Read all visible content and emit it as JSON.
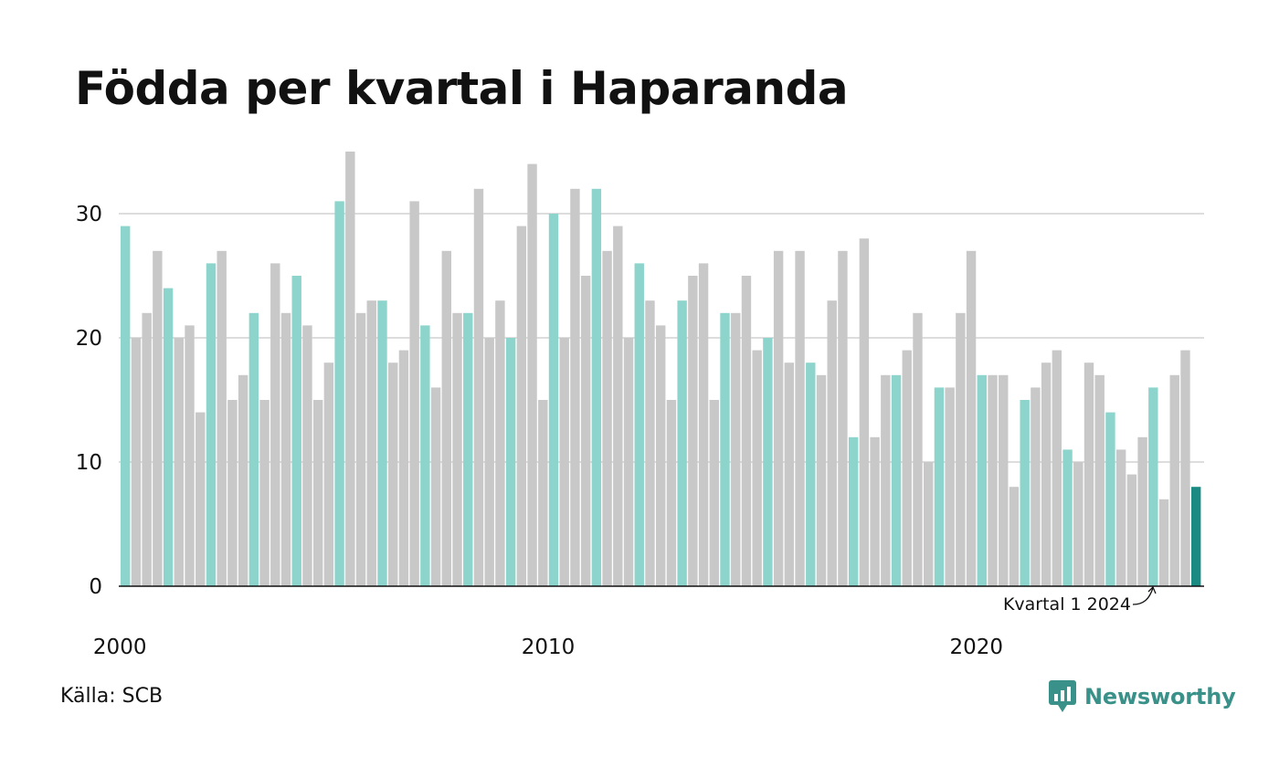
{
  "title": "Födda per kvartal i Haparanda",
  "source": "Källa: SCB",
  "brand": {
    "name": "Newsworthy",
    "icon": "newsworthy-chart-icon"
  },
  "colors": {
    "q1": "#8dd5cc",
    "other": "#c8c8c8",
    "latest": "#1a8a82",
    "grid": "#dddddd",
    "axis": "#111111"
  },
  "chart_data": {
    "type": "bar",
    "title": "Födda per kvartal i Haparanda",
    "xlabel": "",
    "ylabel": "",
    "ylim": [
      0,
      35
    ],
    "yticks": [
      0,
      10,
      20,
      30
    ],
    "xticks": [
      "2000",
      "2010",
      "2020"
    ],
    "grid": true,
    "legend": "none",
    "start_year": 2000,
    "values": [
      29,
      20,
      22,
      27,
      24,
      20,
      21,
      14,
      26,
      27,
      15,
      17,
      22,
      15,
      26,
      22,
      25,
      21,
      15,
      18,
      31,
      35,
      22,
      23,
      23,
      18,
      19,
      31,
      21,
      16,
      27,
      22,
      22,
      32,
      20,
      23,
      20,
      29,
      34,
      15,
      30,
      20,
      32,
      25,
      32,
      27,
      29,
      20,
      26,
      23,
      21,
      15,
      23,
      25,
      26,
      15,
      22,
      22,
      25,
      19,
      20,
      27,
      18,
      27,
      18,
      17,
      23,
      27,
      12,
      28,
      12,
      17,
      17,
      19,
      22,
      10,
      16,
      16,
      22,
      27,
      17,
      17,
      17,
      8,
      15,
      16,
      18,
      19,
      11,
      10,
      18,
      17,
      14,
      11,
      9,
      12,
      16,
      7,
      17,
      19,
      8
    ],
    "annotation": "Kvartal 1 2024"
  }
}
